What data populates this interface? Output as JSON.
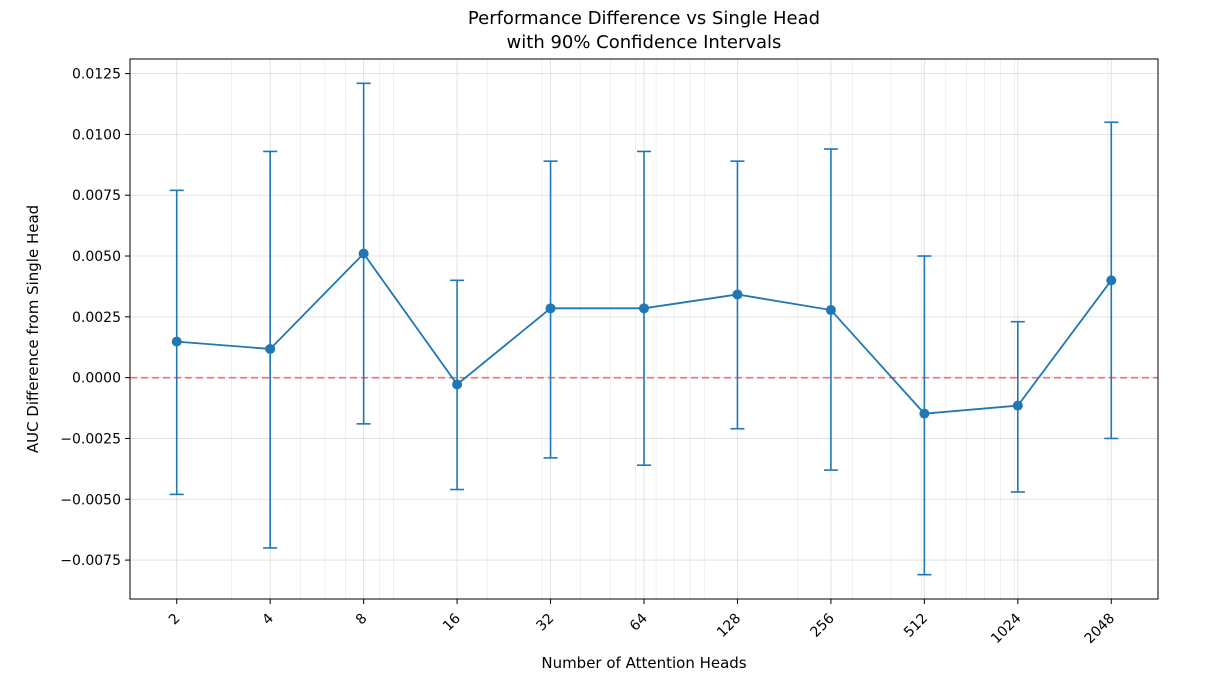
{
  "chart_data": {
    "type": "line",
    "title": [
      "Performance Difference vs Single Head",
      "with 90% Confidence Intervals"
    ],
    "xlabel": "Number of Attention Heads",
    "ylabel": "AUC Difference from Single Head",
    "x_scale": "log2",
    "x": [
      2,
      4,
      8,
      16,
      32,
      64,
      128,
      256,
      512,
      1024,
      2048
    ],
    "x_tick_labels": [
      "2",
      "4",
      "8",
      "16",
      "32",
      "64",
      "128",
      "256",
      "512",
      "1024",
      "2048"
    ],
    "ylim": [
      -0.0091,
      0.0131
    ],
    "y_ticks": [
      -0.0075,
      -0.005,
      -0.0025,
      0.0,
      0.0025,
      0.005,
      0.0075,
      0.01,
      0.0125
    ],
    "y_tick_labels": [
      "−0.0075",
      "−0.0050",
      "−0.0025",
      "0.0000",
      "0.0025",
      "0.0050",
      "0.0075",
      "0.0100",
      "0.0125"
    ],
    "grid": true,
    "series": [
      {
        "values": [
          0.00148,
          0.00118,
          0.0051,
          -0.00028,
          0.00285,
          0.00285,
          0.00342,
          0.00278,
          -0.00148,
          -0.00115,
          0.004
        ],
        "ci_lower": [
          -0.0048,
          -0.007,
          -0.0019,
          -0.0046,
          -0.0033,
          -0.0036,
          -0.0021,
          -0.0038,
          -0.0081,
          -0.0047,
          -0.0025
        ],
        "ci_upper": [
          0.0077,
          0.0093,
          0.0121,
          0.004,
          0.0089,
          0.0093,
          0.0089,
          0.0094,
          0.005,
          0.0023,
          0.0105
        ],
        "color": "#1f77b4"
      }
    ],
    "reference_line": {
      "y": 0.0,
      "color": "#ff6b6b",
      "style": "dashed"
    }
  }
}
